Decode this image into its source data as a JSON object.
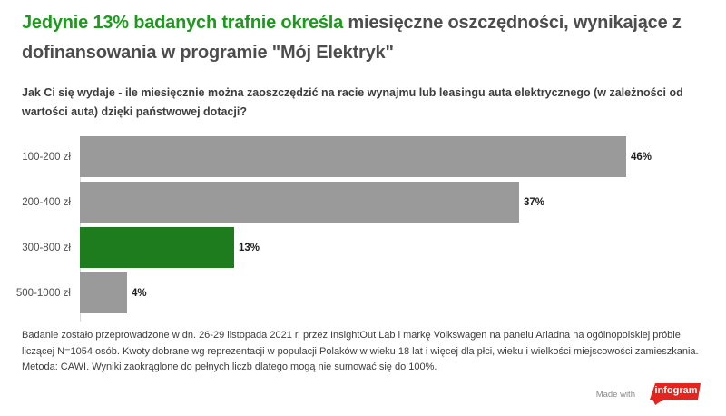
{
  "header": {
    "title_accent": "Jedynie 13% badanych trafnie określa",
    "title_rest": " miesięczne oszczędności, wynikające z dofinansowania w programie \"Mój Elektryk\"",
    "subtitle": "Jak Ci się wydaje -  ile miesięcznie można zaoszczędzić na racie wynajmu lub leasingu auta elektrycznego (w zależności od wartości auta) dzięki państwowej dotacji?"
  },
  "chart_data": {
    "type": "bar",
    "orientation": "horizontal",
    "categories": [
      "100-200 zł",
      "200-400 zł",
      "300-800 zł",
      "500-1000 zł"
    ],
    "values": [
      46,
      37,
      13,
      4
    ],
    "value_labels": [
      "46%",
      "37%",
      "13%",
      "4%"
    ],
    "bar_colors": [
      "#9a9a9a",
      "#9a9a9a",
      "#1e7c1e",
      "#9a9a9a"
    ],
    "highlighted_category": "300-800 zł",
    "title": "Jedynie 13% badanych trafnie określa miesięczne oszczędności, wynikające z dofinansowania w programie \"Mój Elektryk\"",
    "xlabel": "",
    "ylabel": "",
    "xlim": [
      0,
      54
    ],
    "grid": false,
    "legend": false
  },
  "footer": {
    "note": "Badanie zostało przeprowadzone w dn. 26-29 listopada 2021 r. przez InsightOut Lab i markę Volkswagen na panelu Ariadna na ogólnopolskiej próbie liczącej N=1054 osób. Kwoty dobrane wg reprezentacji w populacji Polaków w wieku 18 lat i więcej dla płci, wieku i wielkości miejscowości zamieszkania. Metoda: CAWI. Wyniki zaokrąglone do pełnych liczb dlatego mogą nie sumować się do 100%.",
    "made_with": "Made with",
    "logo_text": "infogram"
  },
  "colors": {
    "title_accent_green": "#1d9a1d",
    "title_dark": "#4d4d4d",
    "bar_gray": "#9a9a9a",
    "bar_green": "#1e7c1e",
    "axis_gray": "#d9d9d9",
    "logo_red": "#e2261f"
  }
}
